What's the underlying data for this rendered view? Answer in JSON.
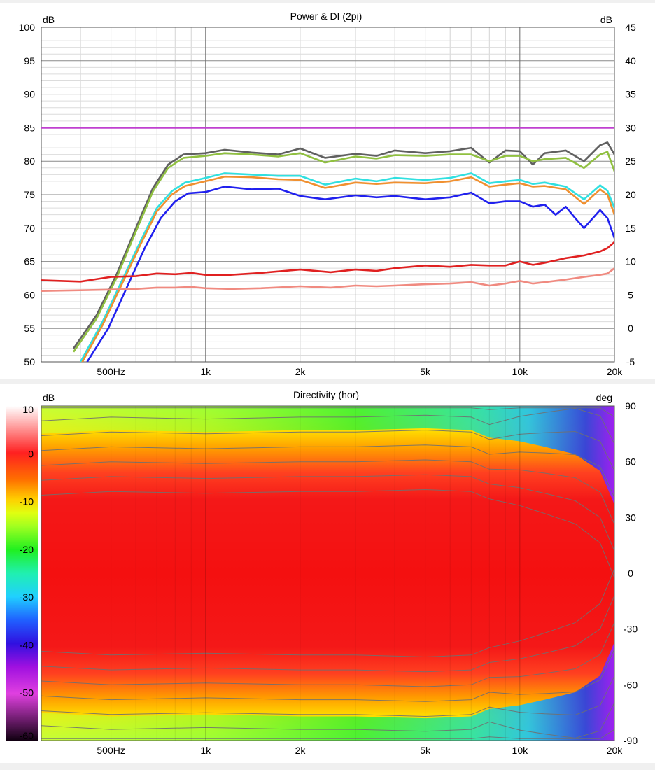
{
  "chart_data": [
    {
      "type": "line",
      "title": "Power & DI (2pi)",
      "y_left_unit": "dB",
      "y_right_unit": "dB",
      "x_scale": "log",
      "xlim": [
        300,
        20000
      ],
      "ylim_left": [
        50,
        100
      ],
      "ylim_right": [
        -5,
        45
      ],
      "x_tick_labels": [
        {
          "value": 500,
          "label": "500Hz"
        },
        {
          "value": 1000,
          "label": "1k"
        },
        {
          "value": 2000,
          "label": "2k"
        },
        {
          "value": 5000,
          "label": "5k"
        },
        {
          "value": 10000,
          "label": "10k"
        },
        {
          "value": 20000,
          "label": "20k"
        }
      ],
      "y_left_ticks": [
        50,
        55,
        60,
        65,
        70,
        75,
        80,
        85,
        90,
        95,
        100
      ],
      "y_right_ticks": [
        -5,
        0,
        5,
        10,
        15,
        20,
        25,
        30,
        35,
        40,
        45
      ],
      "grid": true,
      "series": [
        {
          "color": "#c040d0",
          "axis": "left",
          "x": [
            300,
            20000
          ],
          "y": [
            85,
            85
          ]
        },
        {
          "color": "#606060",
          "axis": "left",
          "x": [
            380,
            450,
            520,
            600,
            680,
            760,
            850,
            1000,
            1150,
            1400,
            1700,
            2000,
            2400,
            3000,
            3500,
            4000,
            5000,
            6000,
            7000,
            8000,
            9000,
            10000,
            11000,
            12000,
            14000,
            16000,
            18000,
            19000,
            20000
          ],
          "y": [
            52,
            57,
            63,
            70,
            76,
            79.5,
            81,
            81.2,
            81.7,
            81.3,
            81,
            81.9,
            80.5,
            81.1,
            80.8,
            81.6,
            81.2,
            81.5,
            82,
            79.8,
            81.6,
            81.5,
            79.5,
            81.2,
            81.6,
            80,
            82.4,
            82.8,
            81
          ]
        },
        {
          "color": "#90c040",
          "axis": "left",
          "x": [
            380,
            450,
            520,
            600,
            680,
            760,
            850,
            1000,
            1150,
            1400,
            1700,
            2000,
            2400,
            3000,
            3500,
            4000,
            5000,
            6000,
            7000,
            8000,
            9000,
            10000,
            11000,
            12000,
            14000,
            16000,
            18000,
            19000,
            20000
          ],
          "y": [
            51.5,
            56.5,
            62.5,
            69.5,
            75.5,
            79,
            80.5,
            80.8,
            81.2,
            81,
            80.7,
            81.2,
            79.8,
            80.7,
            80.4,
            80.9,
            80.8,
            81,
            81,
            80,
            80.8,
            80.8,
            80,
            80.3,
            80.5,
            79,
            81,
            81.4,
            78.5
          ]
        },
        {
          "color": "#30e0e0",
          "axis": "right",
          "x": [
            400,
            470,
            540,
            620,
            700,
            780,
            860,
            1000,
            1150,
            1400,
            1700,
            2000,
            2400,
            3000,
            3500,
            4000,
            5000,
            6000,
            7000,
            8000,
            9000,
            10000,
            11000,
            12000,
            14000,
            16000,
            18000,
            19000,
            20000
          ],
          "y": [
            -5,
            1,
            7,
            13,
            18,
            20.5,
            21.8,
            22.5,
            23.2,
            23,
            22.8,
            22.8,
            21.5,
            22.4,
            22,
            22.5,
            22.2,
            22.5,
            23.2,
            21.7,
            22,
            22.2,
            21.6,
            21.8,
            21.2,
            19.3,
            21.4,
            20.6,
            18
          ]
        },
        {
          "color": "#f09030",
          "axis": "right",
          "x": [
            400,
            470,
            540,
            620,
            700,
            780,
            860,
            1000,
            1150,
            1400,
            1700,
            2000,
            2400,
            3000,
            3500,
            4000,
            5000,
            6000,
            7000,
            8000,
            9000,
            10000,
            11000,
            12000,
            14000,
            16000,
            18000,
            19000,
            20000
          ],
          "y": [
            -5.5,
            0.5,
            6.5,
            12.5,
            17.5,
            20,
            21.3,
            22,
            22.7,
            22.6,
            22.3,
            22.2,
            21,
            21.8,
            21.6,
            21.8,
            21.7,
            22,
            22.6,
            21.2,
            21.5,
            21.7,
            21.2,
            21.3,
            20.8,
            18.6,
            20.8,
            20,
            17
          ]
        },
        {
          "color": "#2020ee",
          "axis": "left",
          "x": [
            420,
            490,
            560,
            640,
            720,
            800,
            880,
            1000,
            1150,
            1400,
            1700,
            2000,
            2400,
            3000,
            3500,
            4000,
            5000,
            6000,
            7000,
            8000,
            9000,
            10000,
            11000,
            12000,
            13000,
            14000,
            15000,
            16000,
            18000,
            19000,
            20000
          ],
          "y": [
            50,
            55,
            61,
            67,
            71.5,
            74,
            75.2,
            75.4,
            76.2,
            75.8,
            75.9,
            74.8,
            74.3,
            74.9,
            74.6,
            74.8,
            74.3,
            74.6,
            75.3,
            73.7,
            74,
            74,
            73.2,
            73.5,
            72,
            73.2,
            71.5,
            70,
            72.7,
            71.5,
            68.5
          ]
        },
        {
          "color": "#e02020",
          "axis": "left",
          "x": [
            300,
            400,
            500,
            600,
            700,
            800,
            900,
            1000,
            1200,
            1500,
            2000,
            2500,
            3000,
            3500,
            4000,
            5000,
            6000,
            7000,
            8000,
            9000,
            10000,
            11000,
            12000,
            14000,
            16000,
            18000,
            19000,
            20000
          ],
          "y": [
            62.2,
            62,
            62.7,
            62.8,
            63.2,
            63.1,
            63.3,
            63,
            63,
            63.3,
            63.8,
            63.4,
            63.8,
            63.6,
            64,
            64.4,
            64.2,
            64.5,
            64.4,
            64.4,
            65,
            64.5,
            64.8,
            65.5,
            65.9,
            66.5,
            67,
            67.9
          ]
        },
        {
          "color": "#f08a80",
          "axis": "left",
          "x": [
            300,
            400,
            500,
            600,
            700,
            800,
            900,
            1000,
            1200,
            1500,
            2000,
            2500,
            3000,
            3500,
            4000,
            5000,
            6000,
            7000,
            8000,
            9000,
            10000,
            11000,
            12000,
            14000,
            16000,
            18000,
            19000,
            20000
          ],
          "y": [
            60.6,
            60.7,
            60.8,
            60.9,
            61.1,
            61.1,
            61.2,
            61,
            60.9,
            61,
            61.3,
            61.1,
            61.4,
            61.3,
            61.4,
            61.6,
            61.7,
            61.9,
            61.4,
            61.7,
            62.1,
            61.7,
            61.9,
            62.3,
            62.7,
            63,
            63.2,
            64
          ]
        }
      ]
    },
    {
      "type": "heatmap",
      "title": "Directivity (hor)",
      "colorbar_unit": "dB",
      "y_right_unit": "deg",
      "x_scale": "log",
      "xlim": [
        300,
        20000
      ],
      "ylim": [
        -90,
        90
      ],
      "clim": [
        -60,
        10
      ],
      "x_tick_labels": [
        {
          "value": 500,
          "label": "500Hz"
        },
        {
          "value": 1000,
          "label": "1k"
        },
        {
          "value": 2000,
          "label": "2k"
        },
        {
          "value": 5000,
          "label": "5k"
        },
        {
          "value": 10000,
          "label": "10k"
        },
        {
          "value": 20000,
          "label": "20k"
        }
      ],
      "y_ticks": [
        90,
        60,
        30,
        0,
        -30,
        -60,
        -90
      ],
      "colorbar_ticks": [
        10,
        0,
        -10,
        -20,
        -30,
        -40,
        -50,
        -60
      ],
      "beamwidth_6dB_freqs": [
        300,
        500,
        1000,
        2000,
        3000,
        5000,
        7000,
        8000,
        10000,
        12000,
        15000,
        18000,
        20000
      ],
      "beamwidth_6dB_halfangle_deg": [
        50,
        52,
        51,
        52,
        52,
        53,
        52,
        48,
        46,
        43,
        39,
        30,
        12
      ]
    }
  ]
}
